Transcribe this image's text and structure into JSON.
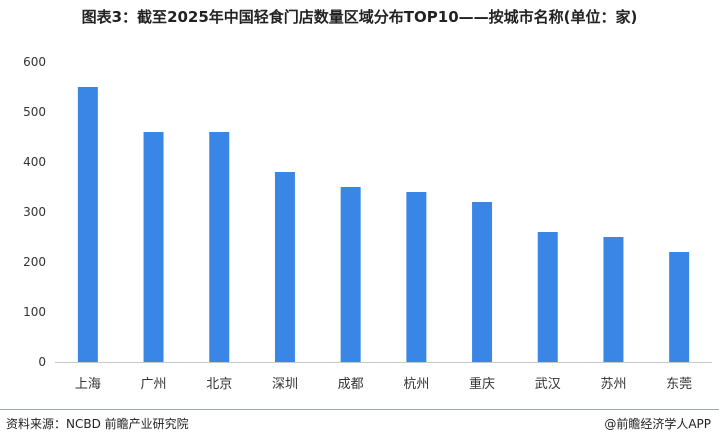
{
  "chart_data": {
    "type": "bar",
    "title": "图表3：截至2025年中国轻食门店数量区域分布TOP10——按城市名称(单位：家)",
    "categories": [
      "上海",
      "广州",
      "北京",
      "深圳",
      "成都",
      "杭州",
      "重庆",
      "武汉",
      "苏州",
      "东莞"
    ],
    "values": [
      550,
      460,
      460,
      380,
      350,
      340,
      320,
      260,
      250,
      220
    ],
    "ylim": [
      0,
      600
    ],
    "yticks": [
      0,
      100,
      200,
      300,
      400,
      500,
      600
    ],
    "xlabel": "",
    "ylabel": "",
    "grid": false,
    "bar_color": "#3a86e6"
  },
  "footer": {
    "source": "资料来源：NCBD 前瞻产业研究院",
    "credit": "@前瞻经济学人APP"
  }
}
